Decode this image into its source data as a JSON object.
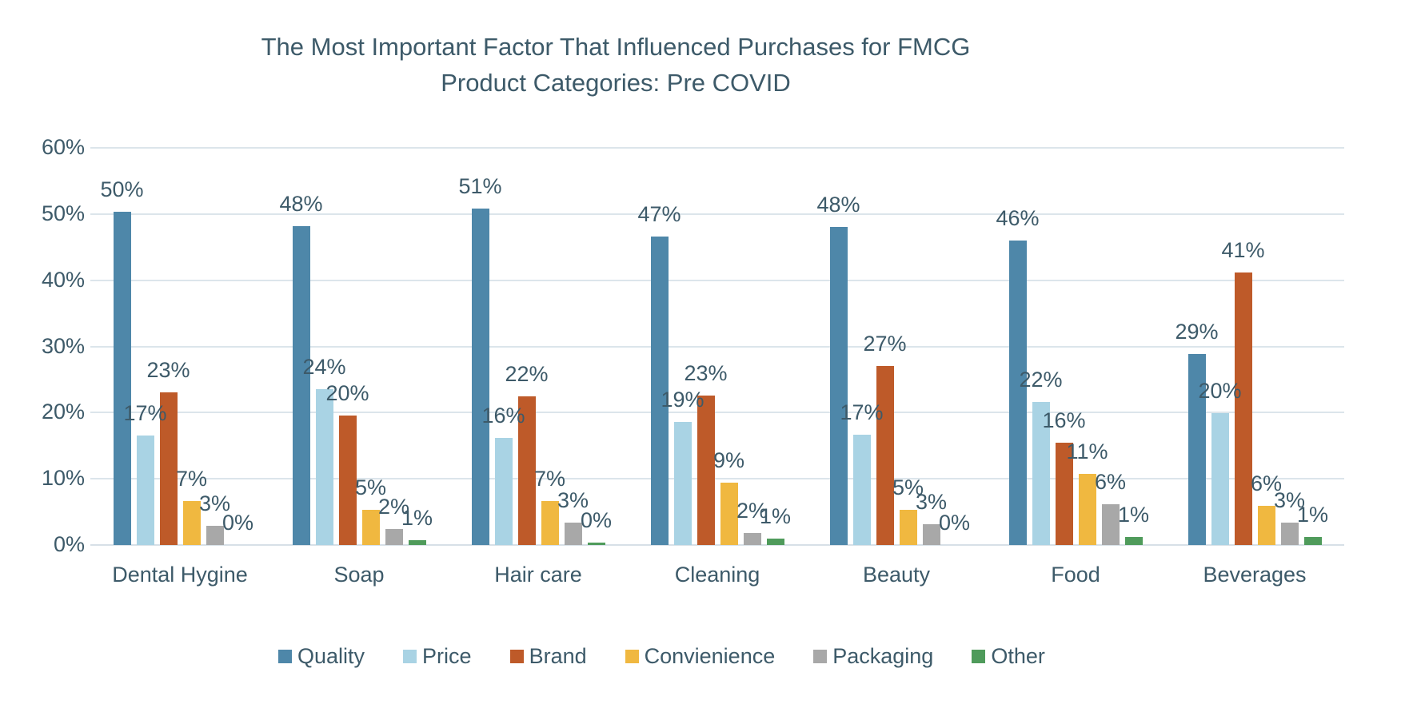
{
  "title": {
    "line1": "The Most Important Factor That Influenced Purchases for FMCG",
    "line2": "Product Categories: Pre COVID"
  },
  "colors": {
    "text": "#3D5A69",
    "gridline": "#DCE5EB",
    "background": "#FFFFFF"
  },
  "chart_data": {
    "type": "bar",
    "title": "The Most Important Factor That Influenced Purchases for FMCG Product Categories: Pre COVID",
    "categories": [
      "Dental Hygine",
      "Soap",
      "Hair care",
      "Cleaning",
      "Beauty",
      "Food",
      "Beverages"
    ],
    "series": [
      {
        "name": "Quality",
        "color": "#4E87A9",
        "values": [
          50,
          48,
          51,
          47,
          48,
          46,
          29
        ],
        "bar_heights_pct": [
          50.4,
          48.2,
          50.8,
          46.6,
          48.0,
          46.0,
          28.8
        ]
      },
      {
        "name": "Price",
        "color": "#A9D3E4",
        "values": [
          17,
          24,
          16,
          19,
          17,
          22,
          20
        ],
        "bar_heights_pct": [
          16.5,
          23.6,
          16.2,
          18.6,
          16.7,
          21.6,
          19.9
        ]
      },
      {
        "name": "Brand",
        "color": "#BE5A29",
        "values": [
          23,
          20,
          22,
          23,
          27,
          16,
          41
        ],
        "bar_heights_pct": [
          23.0,
          19.6,
          22.4,
          22.6,
          27.0,
          15.5,
          41.2
        ]
      },
      {
        "name": "Convienience",
        "color": "#F0B840",
        "values": [
          7,
          5,
          7,
          9,
          5,
          11,
          6
        ],
        "bar_heights_pct": [
          6.6,
          5.3,
          6.7,
          9.4,
          5.3,
          10.8,
          5.9
        ]
      },
      {
        "name": "Packaging",
        "color": "#A8A8A8",
        "values": [
          3,
          2,
          3,
          2,
          3,
          6,
          3
        ],
        "bar_heights_pct": [
          2.9,
          2.4,
          3.4,
          1.8,
          3.1,
          6.2,
          3.4
        ]
      },
      {
        "name": "Other",
        "color": "#4F9B5B",
        "values": [
          0,
          1,
          0,
          1,
          0,
          1,
          1
        ],
        "bar_heights_pct": [
          0.0,
          0.7,
          0.4,
          1.0,
          0.0,
          1.2,
          1.2
        ]
      }
    ],
    "value_suffix": "%",
    "data_labels": true,
    "xlabel": "",
    "ylabel": "",
    "ylim": [
      0,
      60
    ],
    "y_ticks": [
      "0%",
      "10%",
      "20%",
      "30%",
      "40%",
      "50%",
      "60%"
    ],
    "grid": true,
    "legend_position": "bottom"
  }
}
